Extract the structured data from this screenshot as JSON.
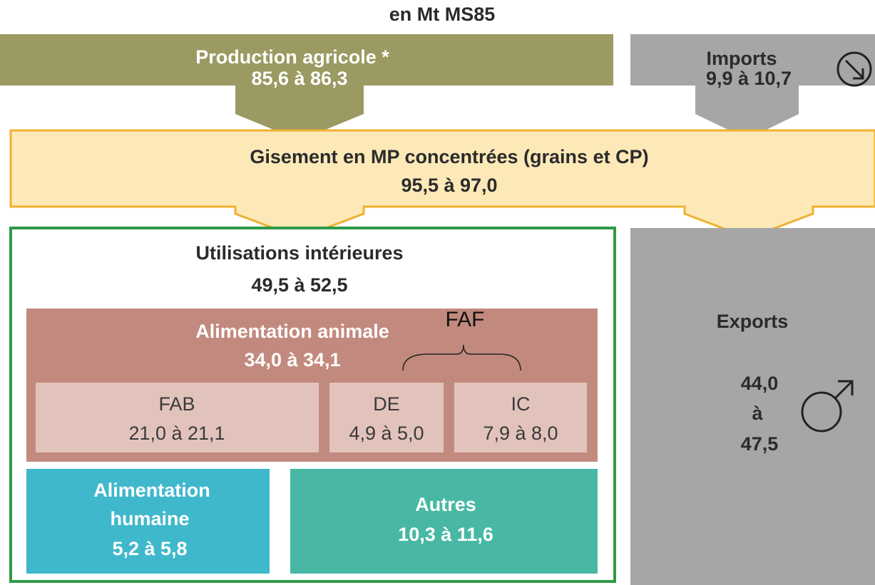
{
  "title": "en Mt MS85",
  "production": {
    "label": "Production agricole *",
    "value": "85,6 à 86,3"
  },
  "imports": {
    "label": "Imports",
    "value": "9,9 à 10,7"
  },
  "gisement": {
    "label": "Gisement en MP concentrées (grains et CP)",
    "value": "95,5 à 97,0"
  },
  "utilisations": {
    "label": "Utilisations intérieures",
    "value": "49,5 à 52,5"
  },
  "alimentation_animale": {
    "label": "Alimentation animale",
    "value": "34,0 à 34,1"
  },
  "faf": "FAF",
  "subboxes": [
    {
      "label": "FAB",
      "value": "21,0 à 21,1"
    },
    {
      "label": "DE",
      "value": "4,9 à 5,0"
    },
    {
      "label": "IC",
      "value": "7,9 à 8,0"
    }
  ],
  "alimentation_humaine": {
    "lines": [
      "Alimentation",
      "humaine"
    ],
    "value": "5,2 à 5,8"
  },
  "autres": {
    "label": "Autres",
    "value": "10,3 à 11,6"
  },
  "exports": {
    "label": "Exports",
    "lines": [
      "44,0",
      "à",
      "47,5"
    ]
  }
}
